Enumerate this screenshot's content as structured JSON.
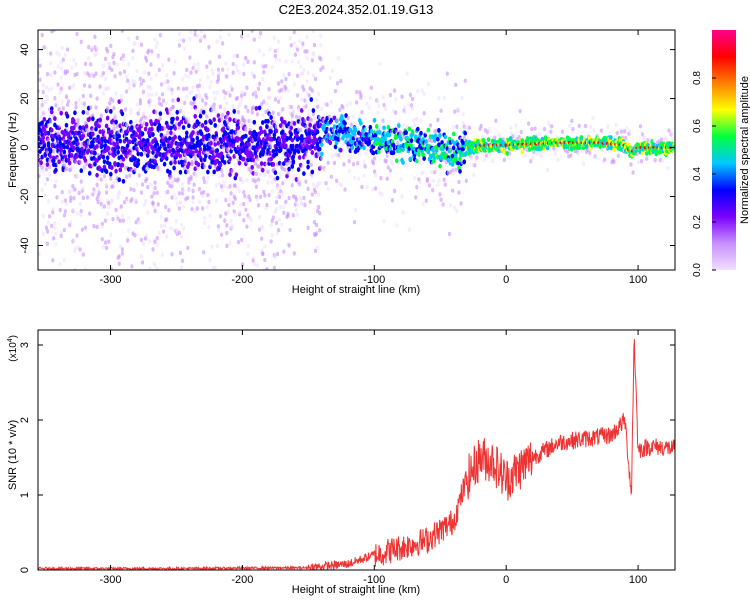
{
  "title": "C2E3.2024.352.01.19.G13",
  "chart_data": [
    {
      "type": "heatmap",
      "xlabel": "Height of straight line (km)",
      "ylabel": "Frequency (Hz)",
      "xlim": [
        -355,
        128
      ],
      "ylim": [
        -50,
        48
      ],
      "xticks": [
        -300,
        -200,
        -100,
        0,
        100
      ],
      "yticks": [
        -40,
        -20,
        0,
        20,
        40
      ],
      "colorbar": {
        "label": "Normalized spectral amplitude",
        "range": [
          0,
          1
        ],
        "ticks": [
          0.0,
          0.2,
          0.4,
          0.6,
          0.8
        ],
        "tick_labels": [
          "0.0",
          "0.2",
          "0.4",
          "0.6",
          "0.8"
        ],
        "colormap": [
          "#f0e0ff",
          "#c890ff",
          "#7a00ff",
          "#0000ff",
          "#00c8ff",
          "#00ff40",
          "#ffff00",
          "#ff8000",
          "#ff0000",
          "#ff0090"
        ]
      },
      "ridge": [
        {
          "x": -355,
          "y": 2
        },
        {
          "x": -300,
          "y": 1
        },
        {
          "x": -250,
          "y": 2
        },
        {
          "x": -200,
          "y": 1
        },
        {
          "x": -150,
          "y": 3
        },
        {
          "x": -130,
          "y": 7
        },
        {
          "x": -110,
          "y": 4
        },
        {
          "x": -90,
          "y": 2
        },
        {
          "x": -70,
          "y": 1
        },
        {
          "x": -50,
          "y": 0
        },
        {
          "x": -38,
          "y": -3
        },
        {
          "x": -30,
          "y": 0
        },
        {
          "x": -20,
          "y": 1
        },
        {
          "x": 0,
          "y": 1
        },
        {
          "x": 40,
          "y": 2
        },
        {
          "x": 70,
          "y": 2
        },
        {
          "x": 90,
          "y": 1
        },
        {
          "x": 95,
          "y": -2
        },
        {
          "x": 100,
          "y": 0
        },
        {
          "x": 128,
          "y": 0
        }
      ]
    },
    {
      "type": "line",
      "xlabel": "Height of straight line (km)",
      "ylabel": "SNR (10 * v/v)",
      "yscale_label": "(x10",
      "yscale_exp": "4",
      "xlim": [
        -355,
        128
      ],
      "ylim": [
        0,
        3.2
      ],
      "xticks": [
        -300,
        -200,
        -100,
        0,
        100
      ],
      "yticks": [
        0,
        1,
        2,
        3
      ],
      "series": [
        {
          "color": "#ee3333",
          "x": [
            -355,
            -250,
            -150,
            -120,
            -100,
            -80,
            -60,
            -40,
            -30,
            -20,
            -10,
            0,
            20,
            40,
            60,
            80,
            90,
            95,
            97,
            100,
            110,
            128
          ],
          "y": [
            0.02,
            0.02,
            0.03,
            0.08,
            0.2,
            0.3,
            0.4,
            0.65,
            1.2,
            1.5,
            1.45,
            1.2,
            1.5,
            1.7,
            1.75,
            1.8,
            2.0,
            1.0,
            3.15,
            1.6,
            1.65,
            1.62
          ]
        }
      ]
    }
  ]
}
